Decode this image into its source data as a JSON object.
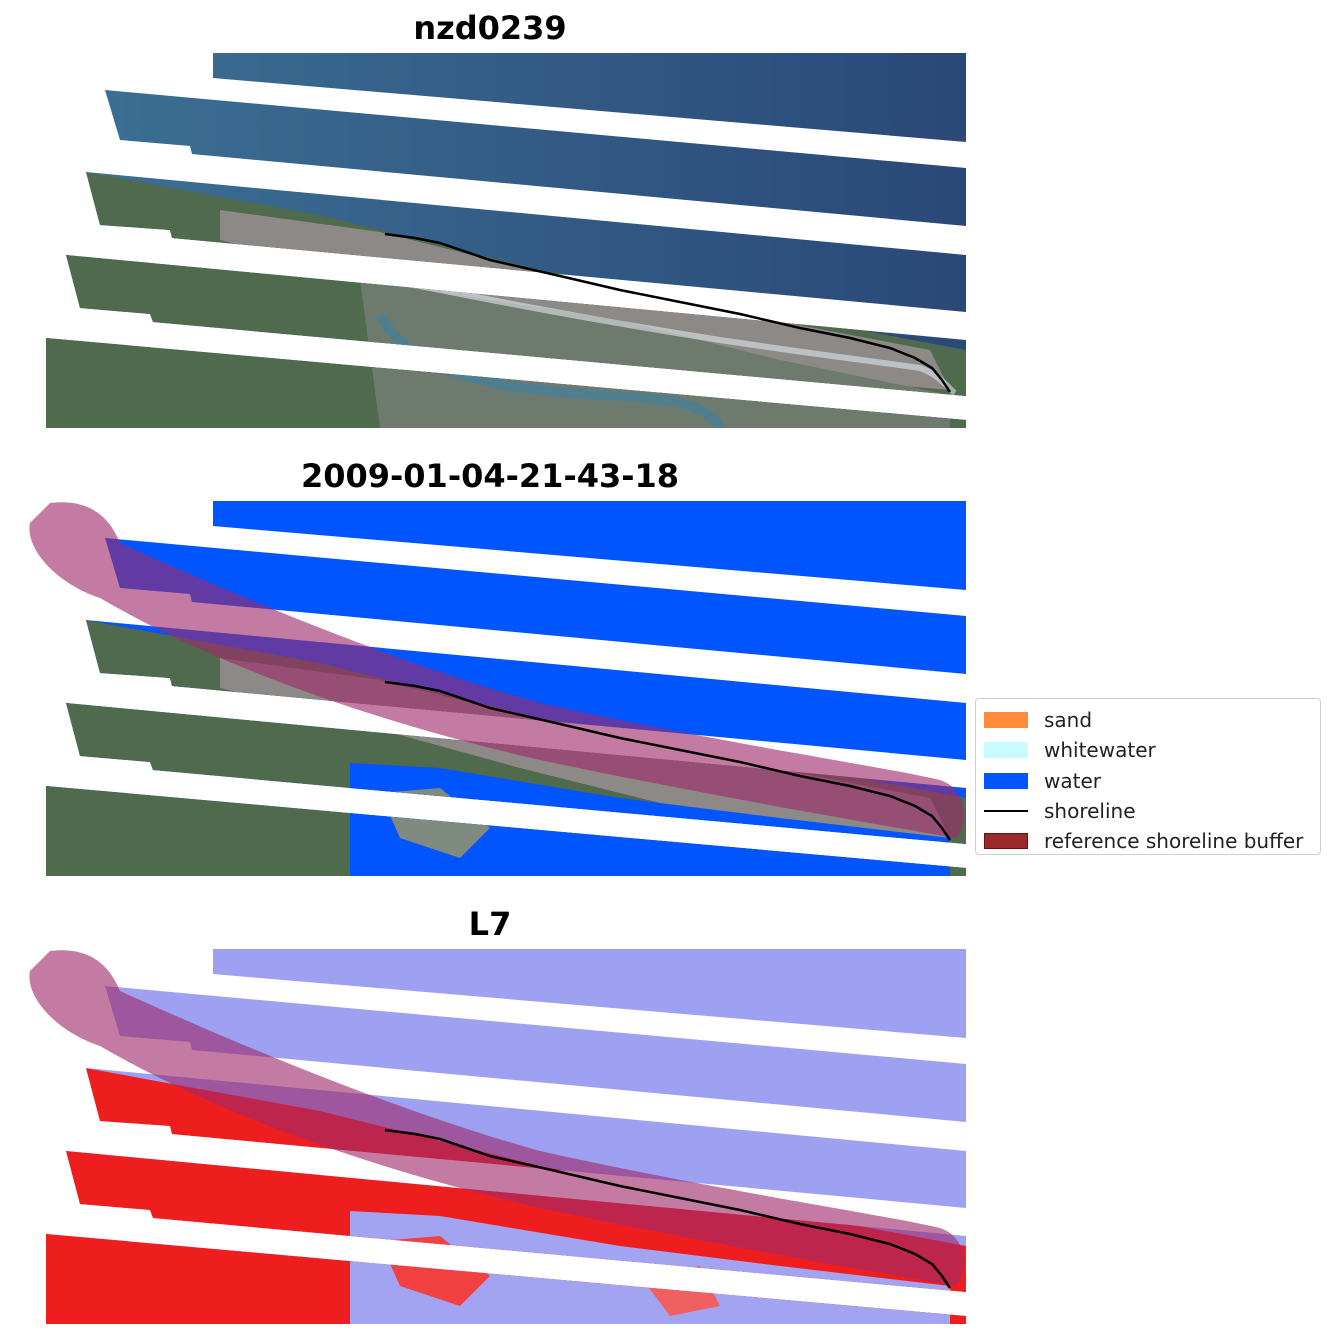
{
  "panels": [
    {
      "id": "rgb",
      "title": "nzd0239"
    },
    {
      "id": "classified",
      "title": "2009-01-04-21-43-18"
    },
    {
      "id": "mndwi",
      "title": "L7"
    }
  ],
  "legend": {
    "items": [
      {
        "label": "sand",
        "color": "#ff8c3a",
        "kind": "patch"
      },
      {
        "label": "whitewater",
        "color": "#c8fcfc",
        "kind": "patch"
      },
      {
        "label": "water",
        "color": "#0055ff",
        "kind": "patch"
      },
      {
        "label": "shoreline",
        "color": "#000000",
        "kind": "line"
      },
      {
        "label": "reference shoreline buffer",
        "color": "#9a2a2a",
        "kind": "patch"
      }
    ]
  },
  "colors": {
    "ocean_rgb": "#3a6f9a",
    "ocean_deep": "#2b4a7a",
    "land_rgb": "#4e6a4a",
    "beach_rgb": "#8a8580",
    "water_class": "#0055ff",
    "buffer": "#9e2a6b",
    "mndwi_water": "#9c9cf0",
    "mndwi_land": "#ee1c1c"
  }
}
